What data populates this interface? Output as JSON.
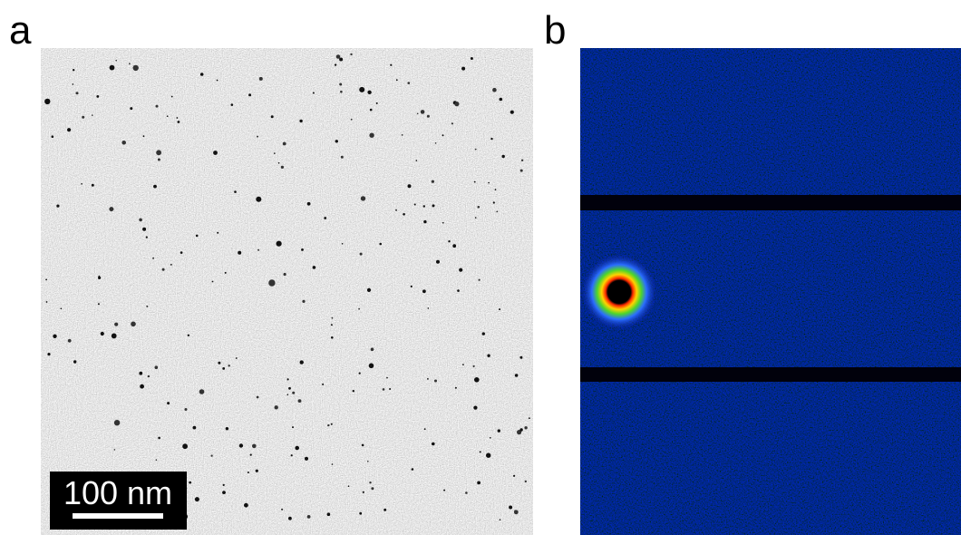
{
  "panels": [
    {
      "label": "a",
      "scale_bar": "100 nm"
    },
    {
      "label": "b"
    }
  ]
}
